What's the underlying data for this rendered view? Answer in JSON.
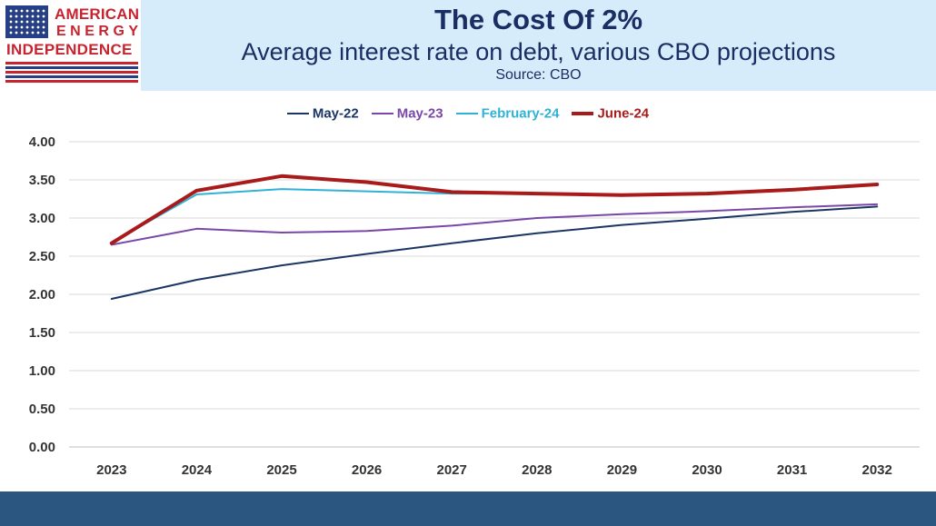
{
  "header": {
    "title": "The Cost Of 2%",
    "subtitle": "Average interest rate on debt, various CBO projections",
    "source": "Source: CBO",
    "band_color": "#d6ecfb"
  },
  "logo": {
    "line1": "AMERICAN",
    "line2": "ENERGY",
    "line3": "INDEPENDENCE",
    "brand_red": "#c8242f",
    "brand_blue": "#263f86"
  },
  "footer": {
    "band_color": "#2a5680"
  },
  "chart_data": {
    "type": "line",
    "title": "The Cost Of 2%",
    "subtitle": "Average interest rate on debt, various CBO projections",
    "xlabel": "",
    "ylabel": "",
    "x": [
      "2023",
      "2024",
      "2025",
      "2026",
      "2027",
      "2028",
      "2029",
      "2030",
      "2031",
      "2032"
    ],
    "ylim": [
      0,
      4
    ],
    "y_ticks": [
      "0.00",
      "0.50",
      "1.00",
      "1.50",
      "2.00",
      "2.50",
      "3.00",
      "3.50",
      "4.00"
    ],
    "grid": true,
    "legend_position": "top",
    "series": [
      {
        "name": "May-22",
        "color": "#1b3664",
        "weight": "thin",
        "values": [
          1.94,
          2.19,
          2.38,
          2.53,
          2.67,
          2.8,
          2.91,
          2.99,
          3.08,
          3.15
        ]
      },
      {
        "name": "May-23",
        "color": "#7a47a8",
        "weight": "thin",
        "values": [
          2.65,
          2.86,
          2.81,
          2.83,
          2.9,
          3.0,
          3.05,
          3.09,
          3.14,
          3.18
        ]
      },
      {
        "name": "February-24",
        "color": "#2fb2d6",
        "weight": "thin",
        "values": [
          2.68,
          3.31,
          3.38,
          3.35,
          3.32,
          3.32,
          3.31,
          3.33,
          3.38,
          3.44
        ]
      },
      {
        "name": "June-24",
        "color": "#a91b1b",
        "weight": "thick",
        "values": [
          2.67,
          3.36,
          3.55,
          3.47,
          3.34,
          3.32,
          3.3,
          3.32,
          3.37,
          3.44
        ]
      }
    ]
  }
}
